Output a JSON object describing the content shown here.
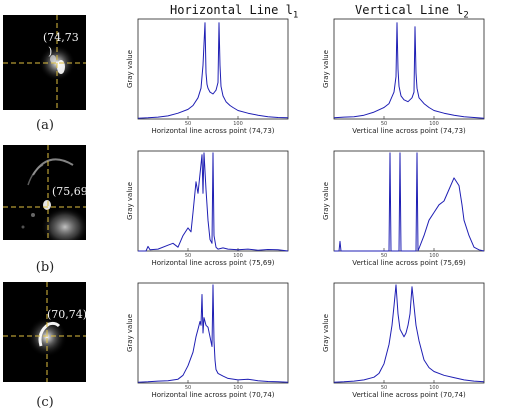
{
  "column_titles": {
    "horizontal": {
      "text": "Horizontal Line l",
      "sub": "1"
    },
    "vertical": {
      "text": "Vertical Line l",
      "sub": "2"
    }
  },
  "rows": [
    {
      "label": "(a)",
      "coord": "(74,73",
      "coord_suffix": ")",
      "h_xlabel": "Horizontal line across point (74,73)",
      "v_xlabel": "Vertical line across point (74,73)"
    },
    {
      "label": "(b)",
      "coord": "(75,69)",
      "coord_suffix": "",
      "h_xlabel": "Horizontal line across point (75,69)",
      "v_xlabel": "Vertical line across point (75,69)"
    },
    {
      "label": "(c)",
      "coord": "(70,74)",
      "coord_suffix": "",
      "h_xlabel": "Horizontal line across point (70,74)",
      "v_xlabel": "Vertical line across point (70,74)"
    }
  ],
  "ylabel": "Gray value",
  "colors": {
    "line": "#1f1fb4",
    "crosshair": "#e0c040",
    "axis": "#222222"
  },
  "chart_data": [
    {
      "type": "line",
      "row": "a",
      "xlabel": "Horizontal line across point (74,73)",
      "ylabel": "Gray value",
      "xlim": [
        0,
        150
      ],
      "ylim": [
        0,
        260
      ],
      "x_ticks": [
        50,
        100
      ],
      "x": [
        0,
        10,
        20,
        30,
        40,
        50,
        55,
        60,
        63,
        65,
        67,
        68,
        69,
        70,
        72,
        75,
        78,
        80,
        81,
        82,
        83,
        85,
        88,
        92,
        95,
        100,
        110,
        120,
        130,
        140,
        150
      ],
      "values": [
        2,
        3,
        5,
        8,
        15,
        25,
        35,
        55,
        80,
        140,
        250,
        120,
        90,
        80,
        70,
        65,
        75,
        95,
        250,
        140,
        85,
        60,
        45,
        35,
        30,
        22,
        15,
        10,
        6,
        4,
        3
      ]
    },
    {
      "type": "line",
      "row": "a",
      "xlabel": "Vertical line across point (74,73)",
      "ylabel": "Gray value",
      "xlim": [
        0,
        150
      ],
      "ylim": [
        0,
        260
      ],
      "x_ticks": [
        50,
        100
      ],
      "x": [
        0,
        10,
        20,
        30,
        40,
        50,
        55,
        60,
        62,
        63,
        64,
        65,
        67,
        70,
        74,
        78,
        80,
        81,
        82,
        83,
        85,
        90,
        95,
        100,
        110,
        120,
        130,
        140,
        150
      ],
      "values": [
        3,
        5,
        6,
        10,
        18,
        30,
        40,
        70,
        110,
        250,
        130,
        85,
        60,
        50,
        45,
        55,
        70,
        240,
        120,
        80,
        55,
        40,
        30,
        22,
        15,
        10,
        6,
        4,
        2
      ]
    },
    {
      "type": "line",
      "row": "b",
      "xlabel": "Horizontal line across point (75,69)",
      "ylabel": "Gray value",
      "xlim": [
        0,
        150
      ],
      "ylim": [
        0,
        260
      ],
      "x_ticks": [
        50,
        100
      ],
      "x": [
        0,
        8,
        10,
        12,
        20,
        30,
        35,
        40,
        45,
        50,
        53,
        55,
        58,
        60,
        62,
        64,
        65,
        66,
        68,
        70,
        72,
        74,
        75,
        76,
        78,
        80,
        85,
        90,
        100,
        110,
        120,
        130,
        140,
        150
      ],
      "values": [
        0,
        0,
        12,
        3,
        5,
        15,
        20,
        10,
        40,
        60,
        50,
        100,
        180,
        150,
        200,
        250,
        150,
        255,
        160,
        80,
        30,
        20,
        255,
        40,
        10,
        5,
        8,
        5,
        3,
        5,
        2,
        4,
        3,
        0
      ]
    },
    {
      "type": "line",
      "row": "b",
      "xlabel": "Vertical line across point (75,69)",
      "ylabel": "Gray value",
      "xlim": [
        0,
        150
      ],
      "ylim": [
        0,
        260
      ],
      "x_ticks": [
        50,
        100
      ],
      "x": [
        0,
        5,
        6,
        7,
        10,
        50,
        55,
        56,
        57,
        58,
        65,
        66,
        67,
        68,
        80,
        82,
        83,
        84,
        90,
        95,
        100,
        105,
        110,
        115,
        120,
        125,
        128,
        130,
        135,
        140,
        145,
        150
      ],
      "values": [
        0,
        0,
        25,
        0,
        0,
        0,
        0,
        255,
        0,
        0,
        0,
        255,
        0,
        0,
        0,
        0,
        255,
        0,
        40,
        80,
        100,
        120,
        130,
        160,
        190,
        170,
        120,
        80,
        40,
        10,
        3,
        0
      ]
    },
    {
      "type": "line",
      "row": "c",
      "xlabel": "Horizontal line across point (70,74)",
      "ylabel": "Gray value",
      "xlim": [
        0,
        150
      ],
      "ylim": [
        0,
        260
      ],
      "x_ticks": [
        50,
        100
      ],
      "x": [
        0,
        10,
        20,
        30,
        40,
        45,
        50,
        55,
        58,
        60,
        62,
        63,
        64,
        65,
        66,
        68,
        70,
        72,
        74,
        75,
        76,
        77,
        78,
        80,
        85,
        90,
        100,
        110,
        120,
        130,
        140,
        150
      ],
      "values": [
        2,
        3,
        5,
        6,
        10,
        20,
        45,
        80,
        120,
        140,
        160,
        150,
        230,
        130,
        170,
        150,
        145,
        120,
        95,
        255,
        110,
        60,
        35,
        25,
        18,
        12,
        8,
        10,
        6,
        4,
        3,
        2
      ]
    },
    {
      "type": "line",
      "row": "c",
      "xlabel": "Vertical line across point (70,74)",
      "ylabel": "Gray value",
      "xlim": [
        0,
        150
      ],
      "ylim": [
        0,
        260
      ],
      "x_ticks": [
        50,
        100
      ],
      "x": [
        0,
        10,
        20,
        30,
        40,
        45,
        50,
        55,
        58,
        60,
        62,
        64,
        66,
        68,
        70,
        72,
        74,
        76,
        78,
        80,
        82,
        85,
        88,
        90,
        95,
        100,
        110,
        120,
        130,
        140,
        150
      ],
      "values": [
        2,
        3,
        5,
        8,
        15,
        25,
        50,
        100,
        150,
        200,
        255,
        180,
        140,
        130,
        120,
        130,
        150,
        180,
        250,
        200,
        150,
        110,
        80,
        60,
        40,
        30,
        20,
        14,
        8,
        5,
        3
      ]
    }
  ]
}
